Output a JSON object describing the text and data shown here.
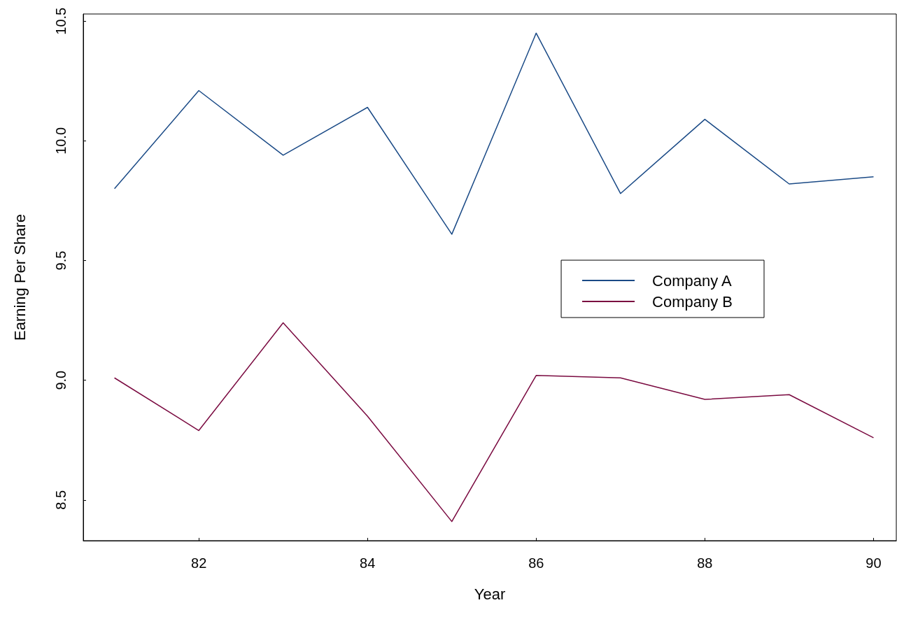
{
  "chart_data": {
    "type": "line",
    "xlabel": "Year",
    "ylabel": "Earning Per Share",
    "x": [
      81,
      82,
      83,
      84,
      85,
      86,
      87,
      88,
      89,
      90
    ],
    "series": [
      {
        "name": "Company A",
        "color": "#1a4a86",
        "values": [
          9.8,
          10.21,
          9.94,
          10.14,
          9.61,
          10.45,
          9.78,
          10.09,
          9.82,
          9.85
        ]
      },
      {
        "name": "Company B",
        "color": "#7a0a40",
        "values": [
          9.01,
          8.79,
          9.24,
          8.85,
          8.41,
          9.02,
          9.01,
          8.92,
          8.94,
          8.76
        ]
      }
    ],
    "xlim": [
      80.63,
      90.27
    ],
    "xticks": [
      82,
      84,
      86,
      88,
      90
    ],
    "ylim": [
      8.33,
      10.53
    ],
    "yticks": [
      {
        "value": 8.5,
        "label": "8.5"
      },
      {
        "value": 9,
        "label": "9.0"
      },
      {
        "value": 9.5,
        "label": "9.5"
      },
      {
        "value": 10,
        "label": "10.0"
      },
      {
        "value": 10.5,
        "label": "10.5"
      }
    ],
    "grid": false,
    "legend": "right",
    "marker": "none",
    "line_style": "solid"
  }
}
